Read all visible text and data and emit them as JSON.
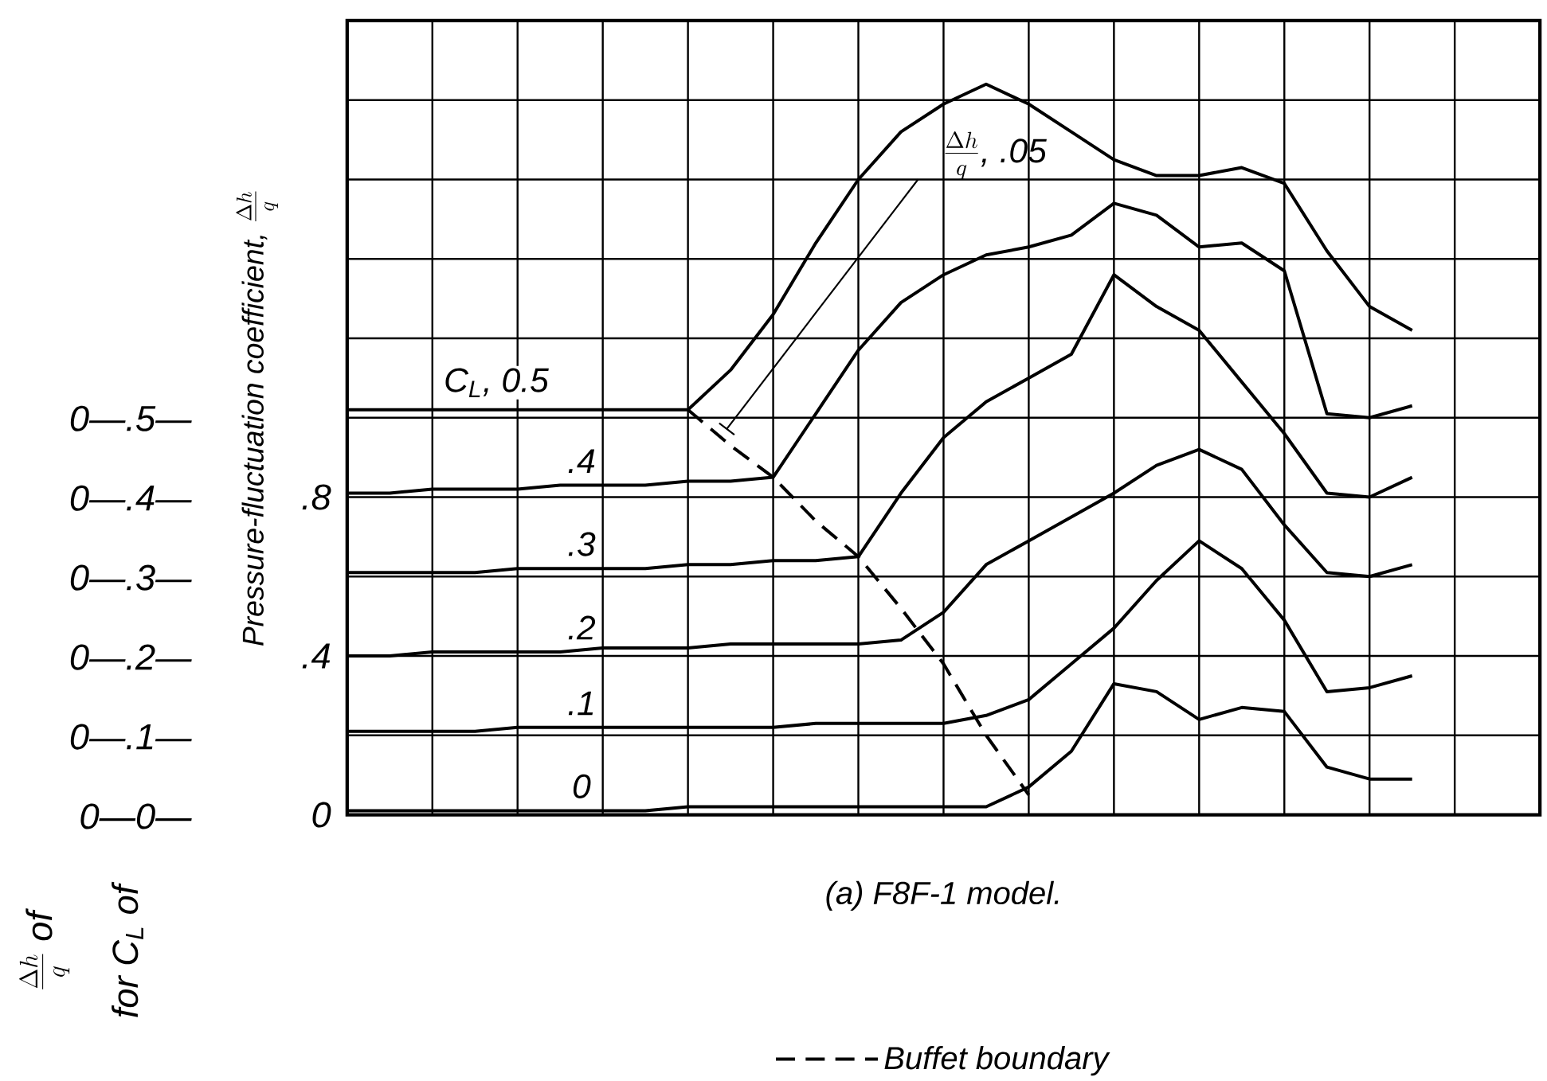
{
  "chart_data": {
    "type": "line",
    "title": "(a) F8F-1 model.",
    "ylabel": "\\textit{Pressure-fluctuation coefficient,}\\ \\frac{\\Delta h}{q}",
    "categories": [
      null,
      null,
      null,
      null,
      null,
      null,
      null,
      null,
      null,
      null,
      null,
      null,
      null,
      null,
      null,
      null,
      null,
      null,
      null,
      null,
      null,
      null,
      null,
      null,
      null,
      null,
      null,
      null,
      null
    ],
    "ylim": [
      0,
      2
    ],
    "yticks": [
      0,
      {
        "value": 0.2,
        "label": null
      },
      {
        "value": 0.4,
        "label": ".4"
      },
      {
        "value": 0.6,
        "label": null
      },
      {
        "value": 0.8,
        "label": ".8"
      },
      {
        "value": 1.0,
        "label": null
      },
      {
        "value": 1.2,
        "label": null
      },
      {
        "value": 1.4,
        "label": null
      },
      {
        "value": 1.6,
        "label": null
      },
      {
        "value": 1.8,
        "label": null
      },
      {
        "value": 2.0,
        "label": null
      }
    ],
    "grid": true,
    "legend": "bottom",
    "marker": "none",
    "series": [
      {
        "name": "C$_{L}$, 0.5",
        "color": "#000000",
        "line_style": "solid",
        "values": [
          1.02,
          1.02,
          1.02,
          1.02,
          1.02,
          1.02,
          1.02,
          1.02,
          1.02,
          1.12,
          1.26,
          1.44,
          1.6,
          1.72,
          1.79,
          1.84,
          1.79,
          1.72,
          1.65,
          1.61,
          1.61,
          1.63,
          1.59,
          1.42,
          1.28,
          1.22,
          null,
          null,
          null
        ]
      },
      {
        "name": ".4",
        "color": "#000000",
        "line_style": "solid",
        "values": [
          0.81,
          0.81,
          0.82,
          0.82,
          0.82,
          0.83,
          0.83,
          0.83,
          0.84,
          0.84,
          0.85,
          1.01,
          1.17,
          1.29,
          1.36,
          1.41,
          1.43,
          1.46,
          1.54,
          1.51,
          1.43,
          1.44,
          1.37,
          1.01,
          1.0,
          1.03,
          null,
          null,
          null
        ]
      },
      {
        "name": ".3",
        "color": "#000000",
        "line_style": "solid",
        "values": [
          0.61,
          0.61,
          0.61,
          0.61,
          0.62,
          0.62,
          0.62,
          0.62,
          0.63,
          0.63,
          0.64,
          0.64,
          0.65,
          0.81,
          0.95,
          1.04,
          1.1,
          1.16,
          1.36,
          1.28,
          1.22,
          1.09,
          0.96,
          0.81,
          0.8,
          0.85,
          null,
          null,
          null
        ]
      },
      {
        "name": ".2",
        "color": "#000000",
        "line_style": "solid",
        "values": [
          0.4,
          0.4,
          0.41,
          0.41,
          0.41,
          0.41,
          0.42,
          0.42,
          0.42,
          0.43,
          0.43,
          0.43,
          0.43,
          0.44,
          0.51,
          0.63,
          0.69,
          0.75,
          0.81,
          0.88,
          0.92,
          0.87,
          0.73,
          0.61,
          0.6,
          0.63,
          null,
          null,
          null
        ]
      },
      {
        "name": ".1",
        "color": "#000000",
        "line_style": "solid",
        "values": [
          0.21,
          0.21,
          0.21,
          0.21,
          0.22,
          0.22,
          0.22,
          0.22,
          0.22,
          0.22,
          0.22,
          0.23,
          0.23,
          0.23,
          0.23,
          0.25,
          0.29,
          0.38,
          0.47,
          0.59,
          0.69,
          0.62,
          0.49,
          0.31,
          0.32,
          0.35,
          null,
          null,
          null
        ]
      },
      {
        "name": "0",
        "color": "#000000",
        "line_style": "solid",
        "values": [
          0.01,
          0.01,
          0.01,
          0.01,
          0.01,
          0.01,
          0.01,
          0.01,
          0.02,
          0.02,
          0.02,
          0.02,
          0.02,
          0.02,
          0.02,
          0.02,
          0.07,
          0.16,
          0.33,
          0.31,
          0.24,
          0.27,
          0.26,
          0.12,
          0.09,
          0.09,
          null,
          null,
          null
        ]
      },
      {
        "name": "Buffet boundary",
        "color": "#000000",
        "line_style": "dashed",
        "values": [
          null,
          null,
          null,
          null,
          null,
          null,
          null,
          null,
          1.02,
          0.93,
          0.85,
          0.74,
          0.65,
          0.52,
          0.38,
          0.2,
          0.05,
          null,
          null,
          null,
          null,
          null,
          null,
          null,
          null,
          null,
          null,
          null,
          null
        ]
      }
    ],
    "annotations": [
      "0—.5—",
      "0—.4—",
      "0—.3—",
      "0—.2—",
      "0—.1—",
      "0—0—",
      "\\frac{\\Delta h}{q}\\ \\textit{of}",
      "for C$_{L}$ of",
      "\\frac{\\Delta h}{q}\\textit{, .05}"
    ]
  }
}
